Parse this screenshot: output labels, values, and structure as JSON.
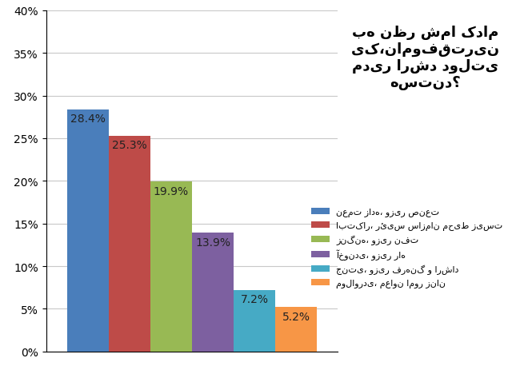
{
  "chart_data": {
    "type": "bar",
    "title": "به نظر شما کدام یک،ناموفق‌ترین مدیر ارشد دولتی هستند؟",
    "categories": [
      "نعمت زاده، وزیر صنعت",
      "ابتکار، رئیس سازمان محیط زیست",
      "زنگنه، وزیر نفت",
      "آخوندی، وزیر راه",
      "جنتی، وزیر فرهنگ و ارشاد",
      "مولاوردی، معاون امور زنان"
    ],
    "values": [
      28.4,
      25.3,
      19.9,
      13.9,
      7.2,
      5.2
    ],
    "value_labels": [
      "28.4%",
      "25.3%",
      "19.9%",
      "13.9%",
      "7.2%",
      "5.2%"
    ],
    "colors": [
      "#4a7ebb",
      "#be4b48",
      "#98b954",
      "#7d60a0",
      "#46aac5",
      "#f79646"
    ],
    "ylim": [
      0,
      40
    ],
    "yticks": [
      {
        "value": 0,
        "label": "0%"
      },
      {
        "value": 5,
        "label": "5%"
      },
      {
        "value": 10,
        "label": "10%"
      },
      {
        "value": 15,
        "label": "15%"
      },
      {
        "value": 20,
        "label": "20%"
      },
      {
        "value": 25,
        "label": "25%"
      },
      {
        "value": 30,
        "label": "30%"
      },
      {
        "value": 35,
        "label": "35%"
      },
      {
        "value": 40,
        "label": "40%"
      }
    ],
    "grid": true,
    "legend": "center right",
    "data_labels": true,
    "tick_labels": "y"
  }
}
